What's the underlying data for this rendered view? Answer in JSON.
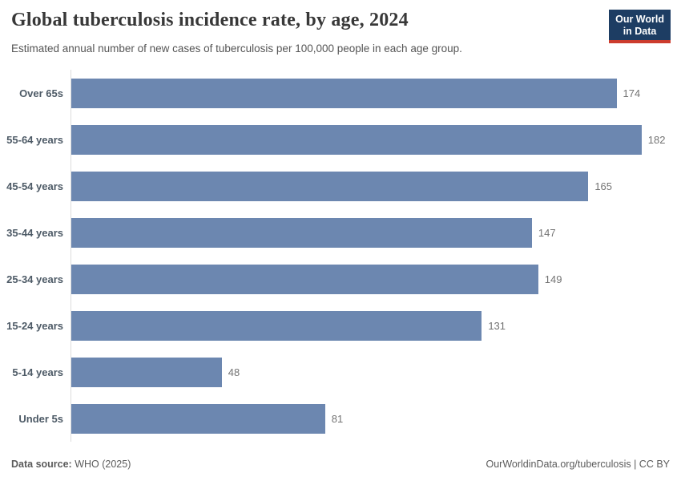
{
  "header": {
    "title": "Global tuberculosis incidence rate, by age, 2024",
    "subtitle": "Estimated annual number of new cases of tuberculosis per 100,000 people in each age group.",
    "logo": {
      "line1": "Our World",
      "line2": "in Data"
    }
  },
  "chart_data": {
    "type": "bar",
    "orientation": "horizontal",
    "title": "Global tuberculosis incidence rate, by age, 2024",
    "categories": [
      "Over 65s",
      "55-64 years",
      "45-54 years",
      "35-44 years",
      "25-34 years",
      "15-24 years",
      "5-14 years",
      "Under 5s"
    ],
    "values": [
      174,
      182,
      165,
      147,
      149,
      131,
      48,
      81
    ],
    "xlabel": "",
    "ylabel": "",
    "xlim": [
      0,
      191
    ],
    "grid": false,
    "legend": false,
    "value_labels": true,
    "bar_color": "#6c87b0",
    "axis_line_color": "#dddddd"
  },
  "footer": {
    "source_label": "Data source:",
    "source_value": " WHO (2025)",
    "link": "OurWorldinData.org/tuberculosis | CC BY"
  },
  "colors": {
    "bar": "#6c87b0",
    "logo_background": "#1d3d63",
    "logo_underline": "#cc3c2d",
    "category_label": "#4d5a66",
    "value_label": "#737373",
    "title": "#383838",
    "subtitle": "#555555"
  }
}
